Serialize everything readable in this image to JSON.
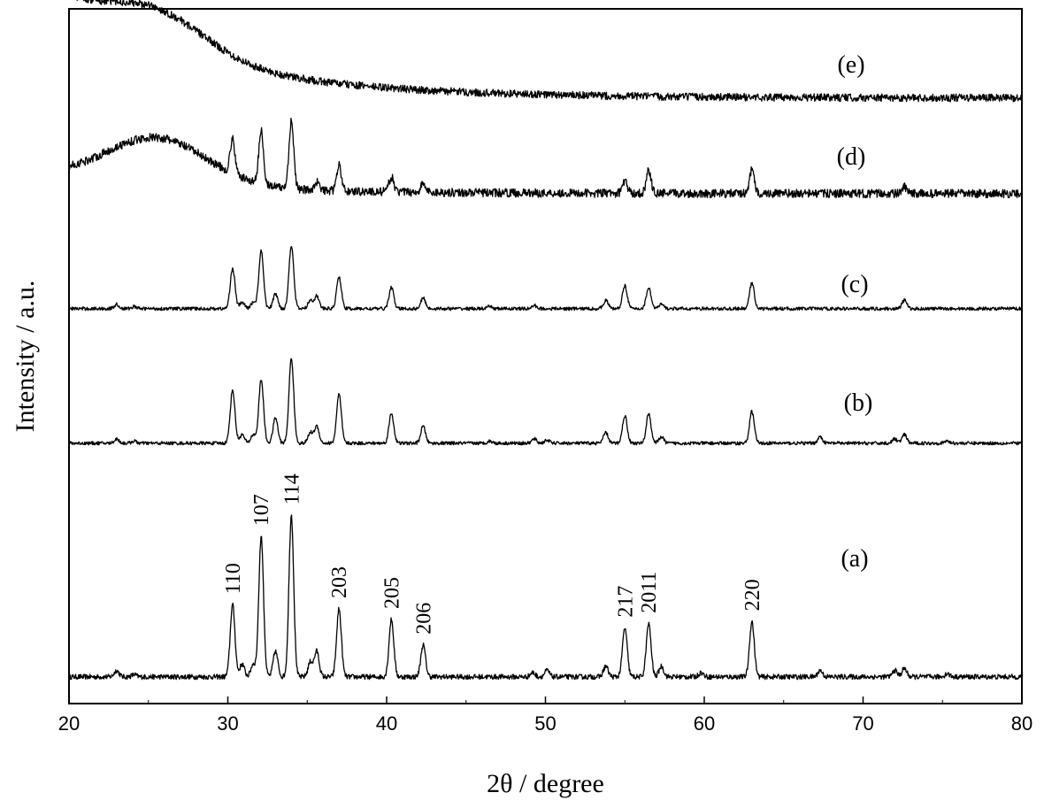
{
  "chart_data": {
    "type": "line",
    "title": "",
    "xlabel": "2θ  / degree",
    "ylabel": "Intensity / a.u.",
    "xlim": [
      20,
      80
    ],
    "x_ticks": [
      20,
      30,
      40,
      50,
      60,
      70,
      80
    ],
    "y_ticks": [],
    "grid": false,
    "legend": "none",
    "series": [
      {
        "name": "(a)",
        "baseline": 0.03,
        "noise": 0.012,
        "amorphous_hump": 0,
        "decay": 0,
        "peaks": [
          [
            23.0,
            0.03
          ],
          [
            24.1,
            0.01
          ],
          [
            30.3,
            0.34
          ],
          [
            30.9,
            0.06
          ],
          [
            31.6,
            0.06
          ],
          [
            32.1,
            0.66
          ],
          [
            33.0,
            0.12
          ],
          [
            34.0,
            0.76
          ],
          [
            35.2,
            0.07
          ],
          [
            35.6,
            0.12
          ],
          [
            37.0,
            0.32
          ],
          [
            40.3,
            0.27
          ],
          [
            42.3,
            0.15
          ],
          [
            49.2,
            0.02
          ],
          [
            50.1,
            0.03
          ],
          [
            53.8,
            0.05
          ],
          [
            55.0,
            0.23
          ],
          [
            56.5,
            0.25
          ],
          [
            57.3,
            0.05
          ],
          [
            59.8,
            0.02
          ],
          [
            63.0,
            0.26
          ],
          [
            67.3,
            0.03
          ],
          [
            72.0,
            0.03
          ],
          [
            72.6,
            0.04
          ],
          [
            75.3,
            0.015
          ]
        ]
      },
      {
        "name": "(b)",
        "baseline": 0.03,
        "noise": 0.008,
        "amorphous_hump": 0,
        "decay": 0,
        "peaks": [
          [
            23.0,
            0.02
          ],
          [
            24.1,
            0.01
          ],
          [
            30.3,
            0.25
          ],
          [
            30.9,
            0.04
          ],
          [
            31.6,
            0.04
          ],
          [
            32.1,
            0.3
          ],
          [
            33.0,
            0.12
          ],
          [
            34.0,
            0.4
          ],
          [
            35.2,
            0.05
          ],
          [
            35.6,
            0.08
          ],
          [
            37.0,
            0.23
          ],
          [
            40.3,
            0.14
          ],
          [
            42.3,
            0.08
          ],
          [
            46.5,
            0.01
          ],
          [
            49.3,
            0.02
          ],
          [
            50.1,
            0.015
          ],
          [
            53.8,
            0.05
          ],
          [
            55.0,
            0.13
          ],
          [
            56.5,
            0.14
          ],
          [
            57.3,
            0.03
          ],
          [
            63.0,
            0.15
          ],
          [
            67.3,
            0.03
          ],
          [
            72.0,
            0.02
          ],
          [
            72.6,
            0.04
          ],
          [
            75.3,
            0.01
          ]
        ]
      },
      {
        "name": "(c)",
        "baseline": 0.03,
        "noise": 0.008,
        "amorphous_hump": 0,
        "decay": 0,
        "peaks": [
          [
            23.0,
            0.02
          ],
          [
            24.1,
            0.01
          ],
          [
            30.3,
            0.19
          ],
          [
            30.9,
            0.03
          ],
          [
            31.6,
            0.03
          ],
          [
            32.1,
            0.27
          ],
          [
            33.0,
            0.07
          ],
          [
            34.0,
            0.3
          ],
          [
            35.2,
            0.04
          ],
          [
            35.6,
            0.06
          ],
          [
            37.0,
            0.15
          ],
          [
            40.3,
            0.1
          ],
          [
            42.3,
            0.05
          ],
          [
            46.5,
            0.01
          ],
          [
            49.3,
            0.015
          ],
          [
            53.8,
            0.04
          ],
          [
            55.0,
            0.11
          ],
          [
            56.5,
            0.1
          ],
          [
            57.3,
            0.02
          ],
          [
            63.0,
            0.12
          ],
          [
            72.6,
            0.04
          ]
        ]
      },
      {
        "name": "(d)",
        "baseline": 0.03,
        "noise": 0.02,
        "amorphous_hump": 0.22,
        "decay": 0.08,
        "peaks": [
          [
            30.3,
            0.16
          ],
          [
            32.1,
            0.25
          ],
          [
            34.0,
            0.32
          ],
          [
            35.6,
            0.04
          ],
          [
            37.0,
            0.12
          ],
          [
            40.3,
            0.07
          ],
          [
            42.3,
            0.04
          ],
          [
            55.0,
            0.06
          ],
          [
            56.5,
            0.11
          ],
          [
            63.0,
            0.11
          ],
          [
            72.6,
            0.03
          ]
        ]
      },
      {
        "name": "(e)",
        "baseline": 0.03,
        "noise": 0.018,
        "amorphous_hump": 0.18,
        "decay": 0.45,
        "peaks": []
      }
    ],
    "peak_labels": [
      {
        "text": "110",
        "x": 30.3
      },
      {
        "text": "107",
        "x": 32.1
      },
      {
        "text": "114",
        "x": 34.0
      },
      {
        "text": "203",
        "x": 37.0
      },
      {
        "text": "205",
        "x": 40.3
      },
      {
        "text": "206",
        "x": 42.3
      },
      {
        "text": "217",
        "x": 55.0
      },
      {
        "text": "2011",
        "x": 56.5
      },
      {
        "text": "220",
        "x": 63.0
      }
    ]
  }
}
